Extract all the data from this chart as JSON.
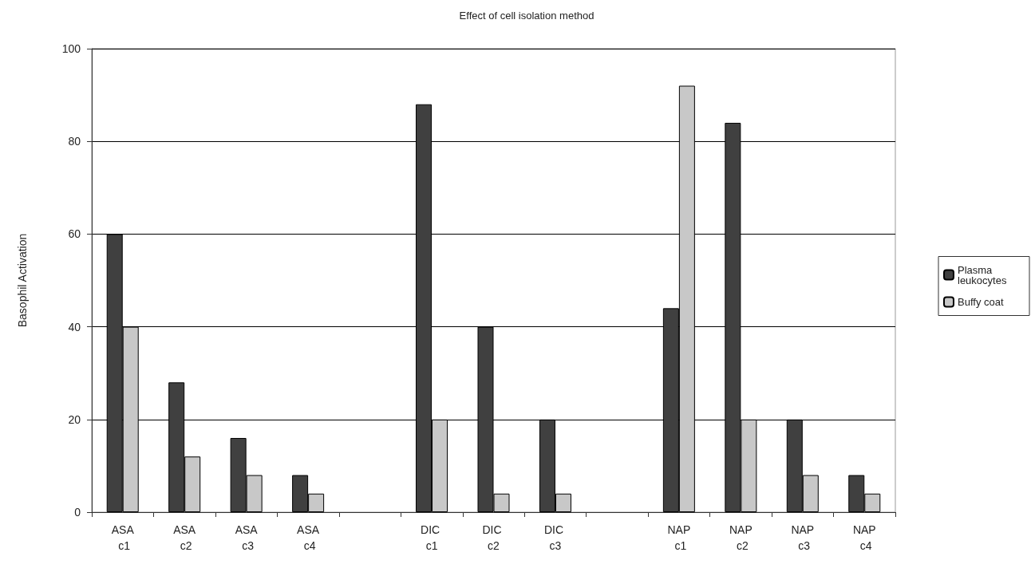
{
  "chart_data": {
    "type": "bar",
    "title": "Effect of cell isolation method",
    "ylabel": "Basophil Activation",
    "categories": [
      "ASA c1",
      "ASA c2",
      "ASA c3",
      "ASA c4",
      null,
      "DIC c1",
      "DIC c2",
      "DIC c3",
      null,
      "NAP c1",
      "NAP c2",
      "NAP c3",
      "NAP c4"
    ],
    "series": [
      {
        "name": "Plasma leukocytes",
        "color": "#404040",
        "values": [
          60,
          28,
          16,
          8,
          null,
          88,
          40,
          20,
          null,
          44,
          84,
          20,
          8
        ]
      },
      {
        "name": "Buffy coat",
        "color": "#c8c8c8",
        "values": [
          40,
          12,
          8,
          4,
          null,
          20,
          4,
          4,
          null,
          92,
          20,
          8,
          4
        ]
      }
    ],
    "ylim": [
      0,
      100
    ],
    "yticks": [
      0,
      20,
      40,
      60,
      80,
      100
    ],
    "grid": "y",
    "legend": "right"
  }
}
